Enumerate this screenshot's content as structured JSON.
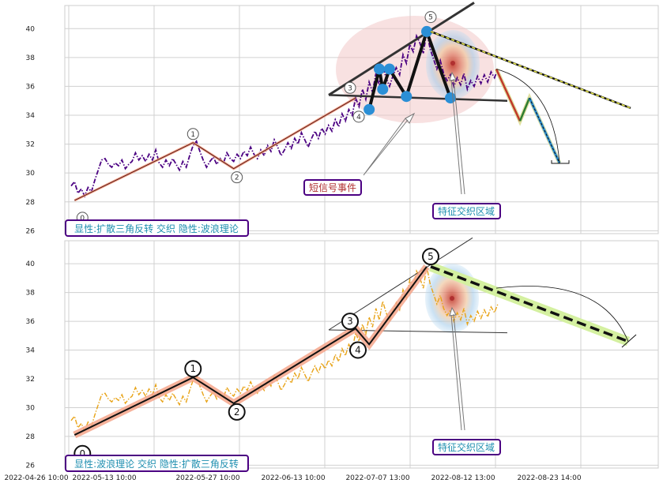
{
  "chart_data": [
    {
      "type": "line",
      "panel": "top",
      "ylim": [
        25.8,
        41.6
      ],
      "y_ticks": [
        "26",
        "28",
        "30",
        "32",
        "34",
        "36",
        "38",
        "40"
      ],
      "grid": true,
      "series": [
        {
          "color": "#4b0082",
          "style": "dash-dot",
          "values": [
            29.1,
            29.4,
            28.6,
            28.9,
            28.4,
            29.0,
            28.7,
            29.5,
            30.2,
            30.9,
            31.0,
            30.6,
            30.4,
            30.7,
            30.5,
            30.9,
            30.3,
            30.6,
            30.8,
            31.4,
            30.9,
            31.2,
            30.8,
            31.3,
            30.9,
            31.6,
            30.7,
            30.4,
            30.9,
            30.5,
            31.0,
            30.6,
            30.2,
            30.8,
            30.4,
            31.2,
            31.9,
            32.2,
            31.5,
            30.9,
            30.4,
            30.8,
            31.1,
            30.6,
            31.0,
            30.7,
            31.4,
            31.0,
            30.8,
            31.3,
            31.0,
            31.5,
            31.2,
            31.8,
            31.3,
            31.0,
            31.6,
            31.2,
            31.9,
            31.5,
            32.3,
            31.8,
            31.2,
            31.6,
            32.1,
            31.7,
            32.4,
            32.0,
            32.8,
            32.3,
            31.8,
            32.4,
            32.9,
            32.4,
            33.1,
            32.7,
            33.3,
            32.9,
            33.7,
            33.2,
            34.1,
            33.6,
            34.4,
            34.0,
            35.2,
            34.6,
            35.8,
            35.1,
            36.3,
            35.6,
            36.9,
            36.1,
            37.4,
            36.6,
            36.0,
            36.7,
            37.3,
            36.8,
            38.2,
            37.6,
            38.9,
            38.4,
            39.5,
            39.0,
            38.3,
            39.8,
            38.6,
            37.9,
            37.2,
            37.8,
            36.9,
            36.4,
            36.8,
            36.0,
            36.6,
            36.1,
            36.9,
            35.8,
            36.4,
            36.0,
            36.7,
            36.2,
            36.8,
            36.3,
            37.0,
            36.6,
            37.2
          ]
        },
        {
          "name": "trend",
          "color": "#000000",
          "values": [
            28.1,
            32.1,
            30.3,
            35.2,
            34.4,
            39.8,
            35.3
          ]
        }
      ],
      "wave_labels": [
        "0",
        "1",
        "2",
        "3",
        "4",
        "5"
      ],
      "key_points": [
        {
          "y": 34.4
        },
        {
          "y": 37.2
        },
        {
          "y": 35.8
        },
        {
          "y": 37.2
        },
        {
          "y": 35.3
        },
        {
          "y": 39.8
        },
        {
          "y": 35.2
        }
      ],
      "forecast": {
        "values": [
          37.2,
          33.6,
          35.2,
          30.7
        ]
      },
      "annotations": {
        "short_signal": "短信号事件",
        "feature_zone": "特征交织区域",
        "legend": "显性:扩散三角反转 交织 隐性:波浪理论"
      }
    },
    {
      "type": "line",
      "panel": "bottom",
      "ylim": [
        25.8,
        41.6
      ],
      "y_ticks": [
        "26",
        "28",
        "30",
        "32",
        "34",
        "36",
        "38",
        "40"
      ],
      "x_ticks": [
        "2022-04-26 10:00",
        "2022-05-13 10:00",
        "2022-05-27 10:00",
        "2022-06-13 10:00",
        "2022-07-07 13:00",
        "2022-08-12 13:00",
        "2022-08-23 14:00"
      ],
      "grid": true,
      "series": [
        {
          "color": "#e8a317",
          "style": "dash-dot",
          "values": [
            29.1,
            29.4,
            28.6,
            28.9,
            28.4,
            29.0,
            28.7,
            29.5,
            30.2,
            30.9,
            31.0,
            30.6,
            30.4,
            30.7,
            30.5,
            30.9,
            30.3,
            30.6,
            30.8,
            31.4,
            30.9,
            31.2,
            30.8,
            31.3,
            30.9,
            31.6,
            30.7,
            30.4,
            30.9,
            30.5,
            31.0,
            30.6,
            30.2,
            30.8,
            30.4,
            31.2,
            31.9,
            32.2,
            31.5,
            30.9,
            30.4,
            30.8,
            31.1,
            30.6,
            31.0,
            30.7,
            31.4,
            31.0,
            30.8,
            31.3,
            31.0,
            31.5,
            31.2,
            31.8,
            31.3,
            31.0,
            31.6,
            31.2,
            31.9,
            31.5,
            32.3,
            31.8,
            31.2,
            31.6,
            32.1,
            31.7,
            32.4,
            32.0,
            32.8,
            32.3,
            31.8,
            32.4,
            32.9,
            32.4,
            33.1,
            32.7,
            33.3,
            32.9,
            33.7,
            33.2,
            34.1,
            33.6,
            34.4,
            34.0,
            35.2,
            34.6,
            35.8,
            35.1,
            36.3,
            35.6,
            36.9,
            36.1,
            37.4,
            36.6,
            36.0,
            36.7,
            37.3,
            36.8,
            38.2,
            37.6,
            38.9,
            38.4,
            39.5,
            39.0,
            38.3,
            39.8,
            38.6,
            37.9,
            37.2,
            37.8,
            36.9,
            36.4,
            36.8,
            36.0,
            36.6,
            36.1,
            36.9,
            35.8,
            36.4,
            36.0,
            36.7,
            36.2,
            36.8,
            36.3,
            37.0,
            36.6,
            37.2
          ]
        },
        {
          "name": "wave",
          "color": "#000000",
          "values": [
            28.1,
            32.1,
            30.3,
            35.5,
            34.4,
            39.8
          ]
        }
      ],
      "wave_labels": [
        "0",
        "1",
        "2",
        "3",
        "4",
        "5"
      ],
      "forecast": {
        "values": [
          39.8,
          34.6
        ]
      },
      "annotations": {
        "feature_zone": "特征交织区域",
        "legend": "显性:波浪理论 交织 隐性:扩散三角反转"
      }
    }
  ]
}
